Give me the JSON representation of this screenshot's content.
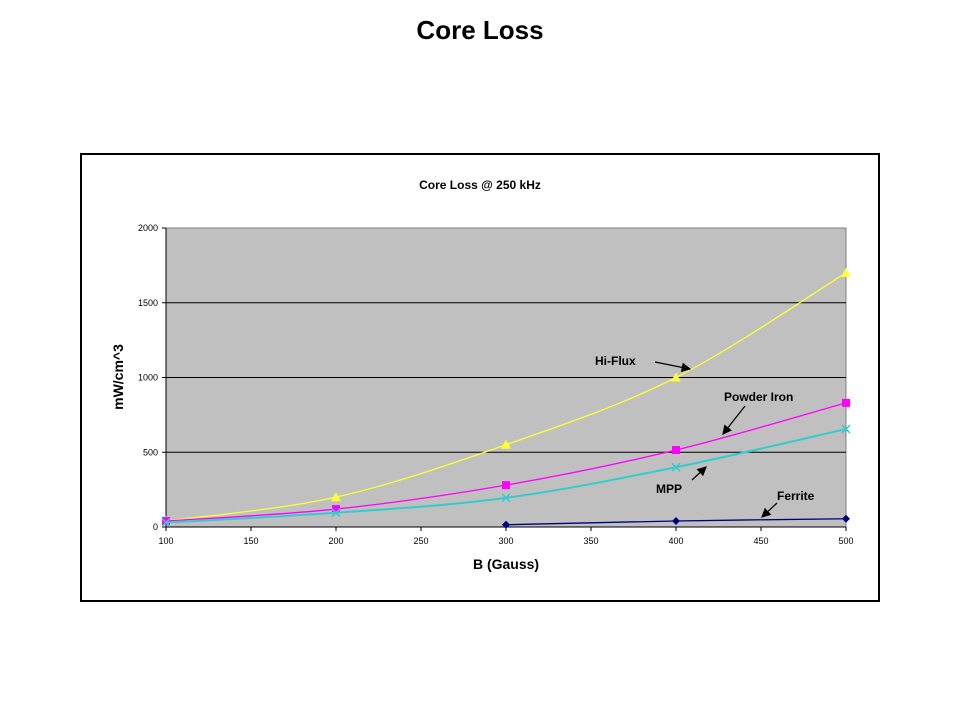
{
  "slide_title": "Core Loss",
  "chart_data": {
    "type": "line",
    "title": "Core Loss @ 250 kHz",
    "xlabel": "B (Gauss)",
    "ylabel": "mW/cm^3",
    "xlim": [
      100,
      500
    ],
    "ylim": [
      0,
      2000
    ],
    "xticks": [
      100,
      150,
      200,
      250,
      300,
      350,
      400,
      450,
      500
    ],
    "xtick_labels": [
      "100",
      "150",
      "200",
      "250",
      "300",
      "350",
      "400",
      "450",
      "500"
    ],
    "yticks": [
      0,
      500,
      1000,
      1500,
      2000
    ],
    "ytick_labels": [
      "0",
      "500",
      "1000",
      "1500",
      "2000"
    ],
    "grid": "horizontal",
    "plot_background": "#C0C0C0",
    "legend": "none (inline annotations)",
    "series": [
      {
        "name": "Hi-Flux",
        "color": "#FFFF33",
        "marker": "triangle",
        "x": [
          100,
          200,
          300,
          400,
          500
        ],
        "values": [
          40,
          200,
          550,
          1000,
          1700
        ]
      },
      {
        "name": "Powder Iron",
        "color": "#FF00FF",
        "marker": "square",
        "x": [
          100,
          200,
          300,
          400,
          500
        ],
        "values": [
          40,
          120,
          280,
          515,
          830
        ]
      },
      {
        "name": "MPP",
        "color": "#33CCCC",
        "marker": "x",
        "x": [
          100,
          200,
          300,
          400,
          500
        ],
        "values": [
          30,
          95,
          195,
          400,
          655
        ]
      },
      {
        "name": "Ferrite",
        "color": "#000080",
        "marker": "diamond",
        "x": [
          300,
          400,
          500
        ],
        "values": [
          15,
          40,
          55
        ]
      }
    ]
  }
}
